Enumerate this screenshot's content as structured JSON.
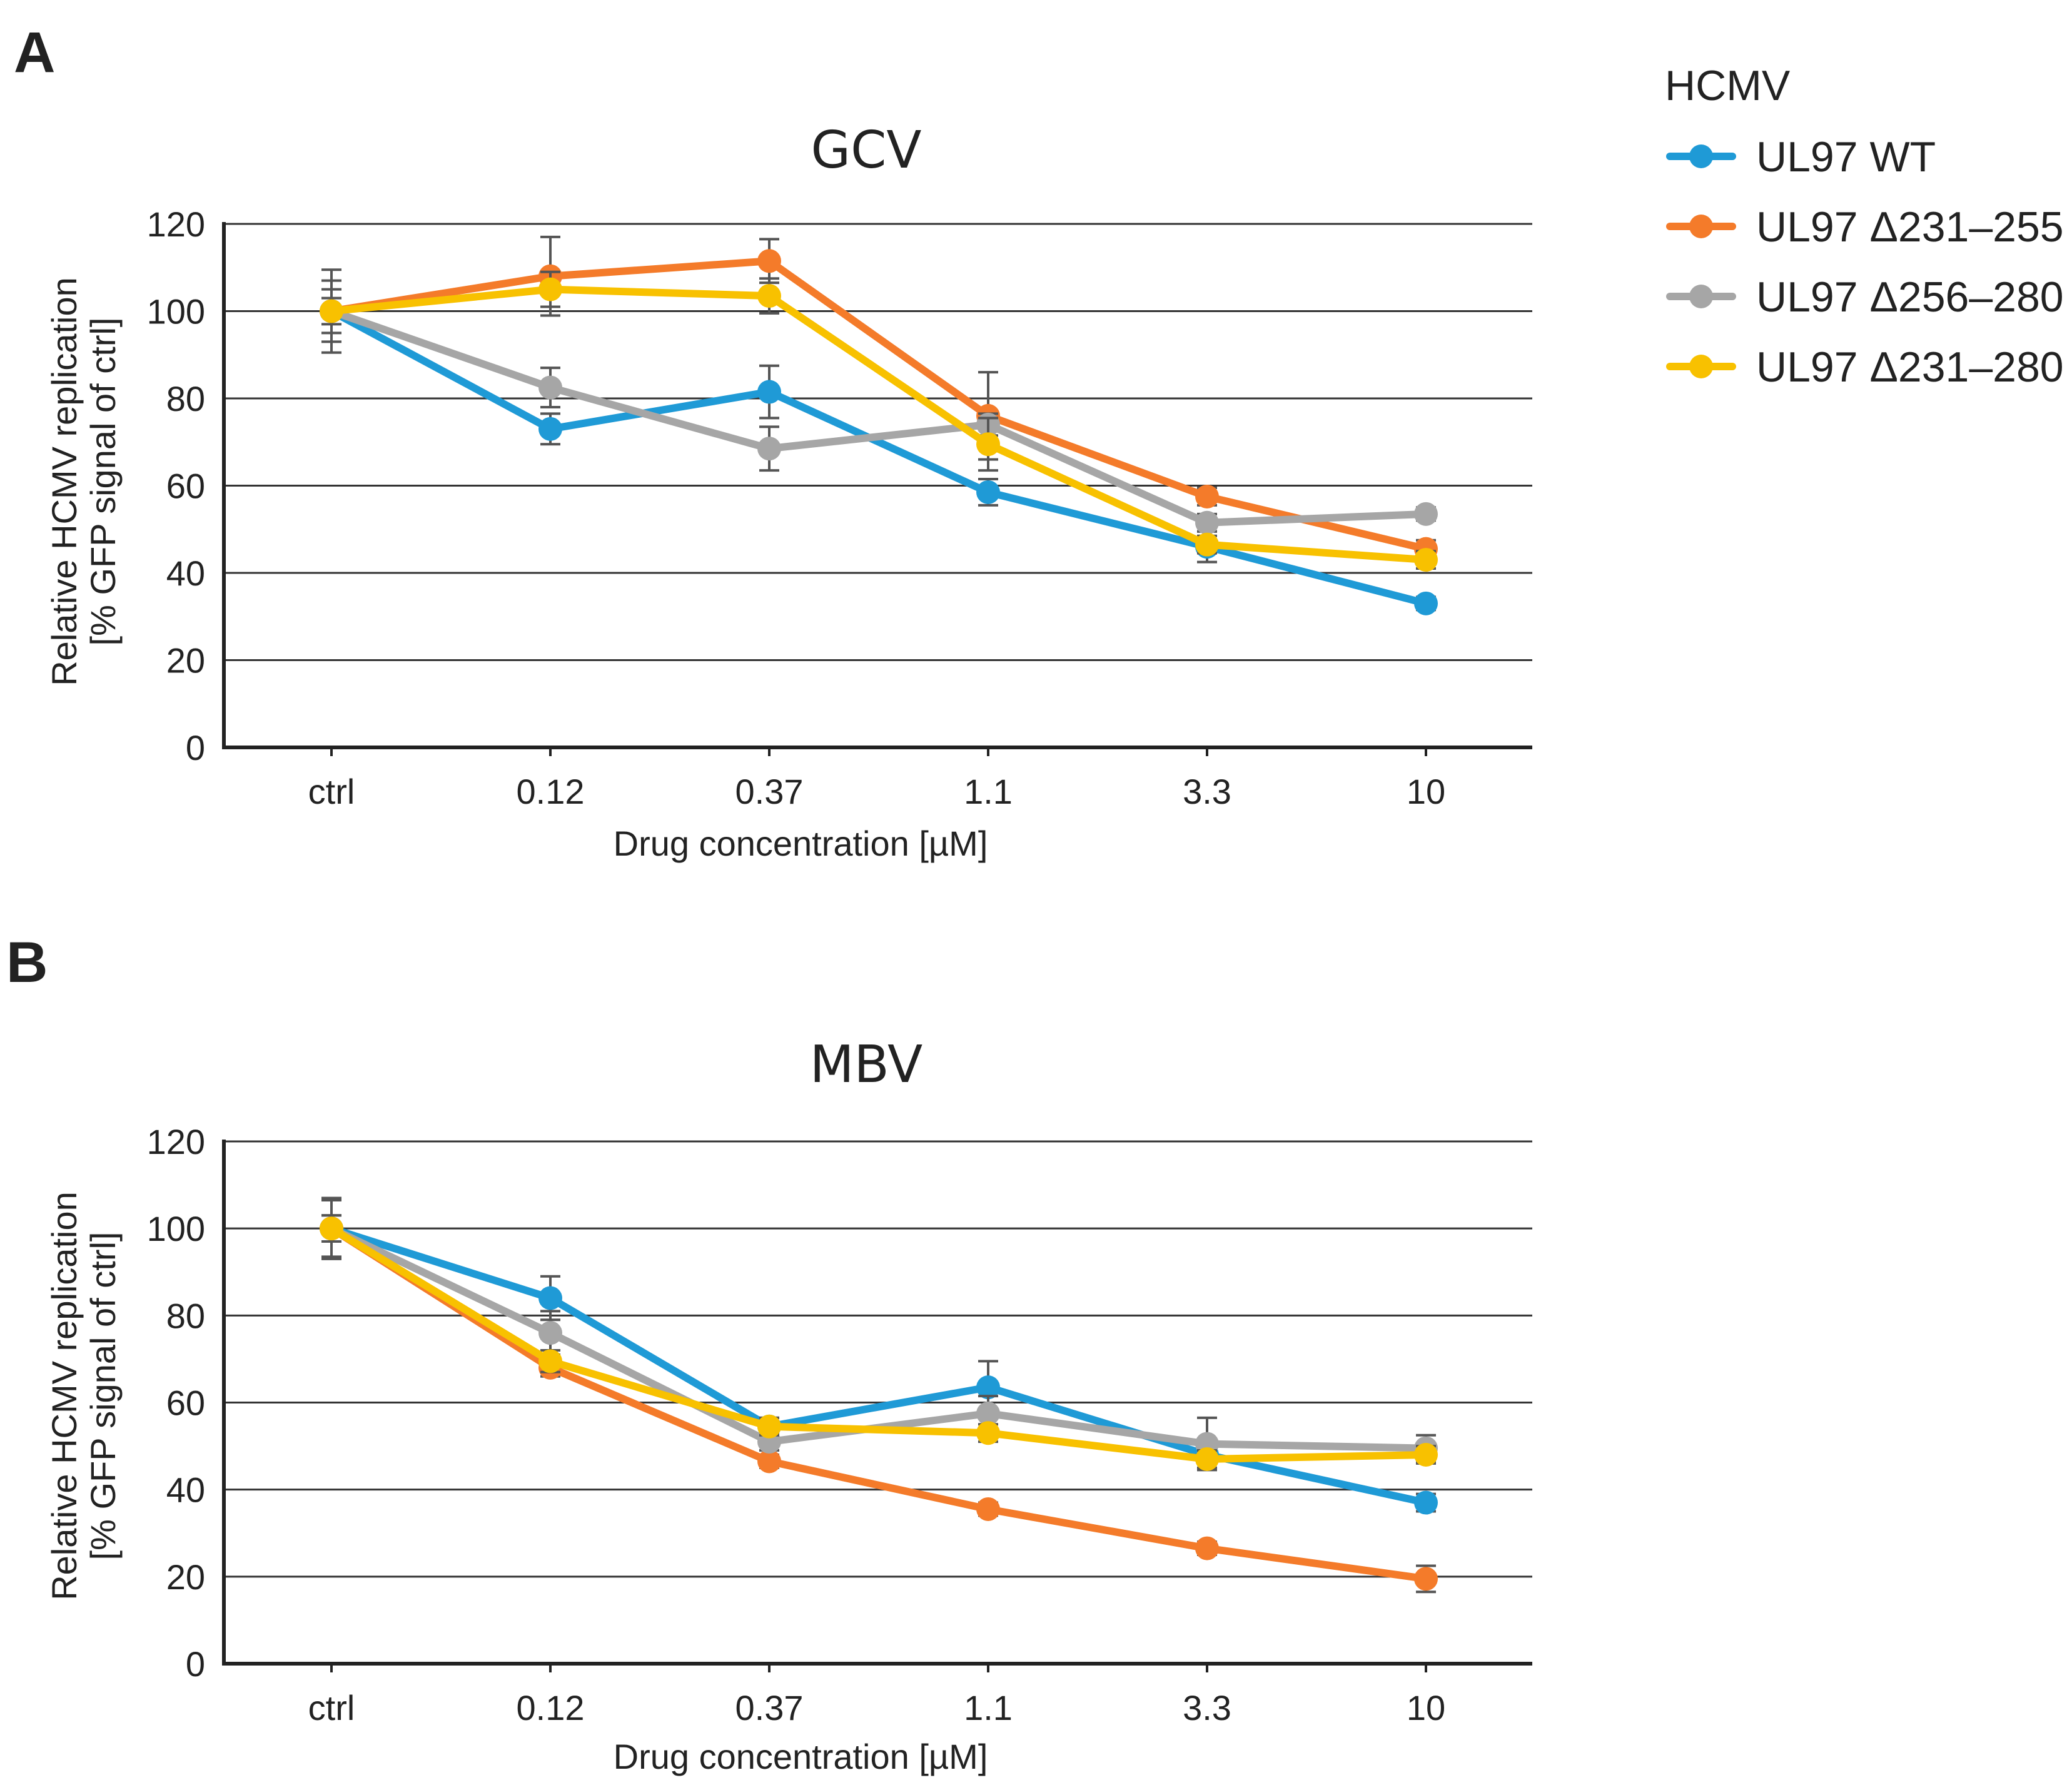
{
  "legend": {
    "title": "HCMV",
    "entries": [
      {
        "name": "UL97 WT",
        "color": "#1f9ad6"
      },
      {
        "name": "UL97 Δ231–255",
        "color": "#f47b2a"
      },
      {
        "name": "UL97 Δ256–280",
        "color": "#a6a6a6"
      },
      {
        "name": "UL97 Δ231–280",
        "color": "#f8c100"
      }
    ]
  },
  "chart_data": [
    {
      "panel": "A",
      "type": "line",
      "title": "GCV",
      "xlabel": "Drug concentration [µM]",
      "ylabel": [
        "Relative HCMV replication",
        "[% GFP signal of ctrl]"
      ],
      "categories": [
        "ctrl",
        "0.12",
        "0.37",
        "1.1",
        "3.3",
        "10"
      ],
      "ylim": [
        0,
        120
      ],
      "yticks": [
        0,
        20,
        40,
        60,
        80,
        100,
        120
      ],
      "grid": true,
      "series": [
        {
          "name": "UL97 WT",
          "color": "#1f9ad6",
          "values": [
            100,
            73,
            81.5,
            58.5,
            46,
            33
          ],
          "errors": [
            7,
            3.5,
            6,
            3,
            3.5,
            1.5
          ]
        },
        {
          "name": "UL97 Δ231–255",
          "color": "#f47b2a",
          "values": [
            100,
            108,
            111.5,
            76,
            57.5,
            45.5
          ],
          "errors": [
            5,
            9,
            5,
            10,
            2,
            2
          ]
        },
        {
          "name": "UL97 Δ256–280",
          "color": "#a6a6a6",
          "values": [
            100,
            82.5,
            68.5,
            74,
            51.5,
            53.5
          ],
          "errors": [
            9.5,
            4.5,
            5,
            2.5,
            2,
            1.5
          ]
        },
        {
          "name": "UL97 Δ231–280",
          "color": "#f8c100",
          "values": [
            100,
            105,
            103.5,
            69.5,
            46.5,
            43
          ],
          "errors": [
            3,
            4,
            4,
            6,
            2,
            2
          ]
        }
      ]
    },
    {
      "panel": "B",
      "type": "line",
      "title": "MBV",
      "xlabel": "Drug concentration [µM]",
      "ylabel": [
        "Relative HCMV replication",
        "[% GFP signal of ctrl]"
      ],
      "categories": [
        "ctrl",
        "0.12",
        "0.37",
        "1.1",
        "3.3",
        "10"
      ],
      "ylim": [
        0,
        120
      ],
      "yticks": [
        0,
        20,
        40,
        60,
        80,
        100,
        120
      ],
      "grid": true,
      "series": [
        {
          "name": "UL97 WT",
          "color": "#1f9ad6",
          "values": [
            100,
            84,
            54.5,
            63.5,
            48,
            37
          ],
          "errors": [
            7,
            5,
            2,
            6,
            2,
            2
          ]
        },
        {
          "name": "UL97 Δ231–255",
          "color": "#f47b2a",
          "values": [
            100,
            68,
            46.5,
            35.5,
            26.5,
            19.5
          ],
          "errors": [
            3,
            2,
            1.5,
            1.5,
            1.5,
            3
          ]
        },
        {
          "name": "UL97 Δ256–280",
          "color": "#a6a6a6",
          "values": [
            100,
            76,
            51,
            57.5,
            50.5,
            49.5
          ],
          "errors": [
            6.5,
            5,
            2,
            4,
            6,
            3
          ]
        },
        {
          "name": "UL97 Δ231–280",
          "color": "#f8c100",
          "values": [
            100,
            69.5,
            54.5,
            53,
            47,
            48
          ],
          "errors": [
            3,
            2.5,
            2,
            2,
            2,
            2
          ]
        }
      ]
    }
  ]
}
